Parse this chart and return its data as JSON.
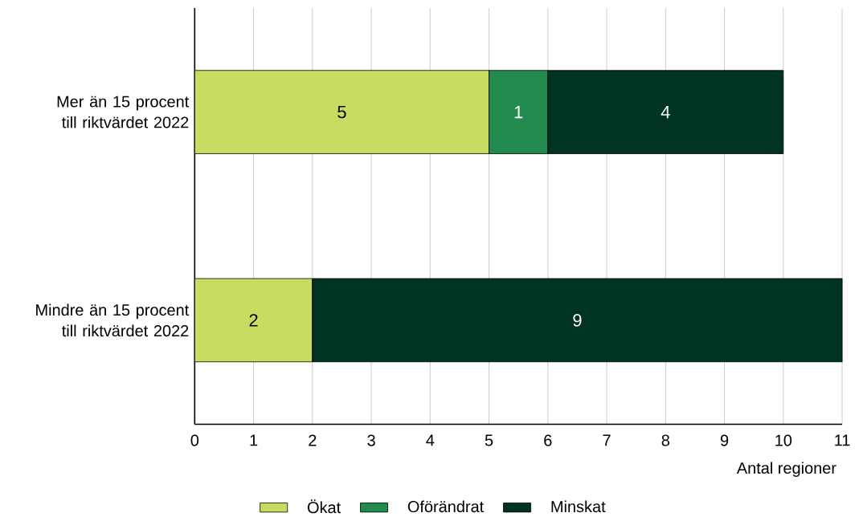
{
  "chart_data": {
    "type": "bar",
    "orientation": "horizontal",
    "stacked": true,
    "categories": [
      "Mer än 15 procent till riktvärdet 2022",
      "Mindre än 15 procent till riktvärdet 2022"
    ],
    "series": [
      {
        "name": "Ökat",
        "color": "#c9dc62",
        "values": [
          5,
          2
        ]
      },
      {
        "name": "Oförändrat",
        "color": "#238a4e",
        "values": [
          1,
          null
        ]
      },
      {
        "name": "Minskat",
        "color": "#003324",
        "values": [
          4,
          9
        ]
      }
    ],
    "xlabel": "Antal regioner",
    "xlim": [
      0,
      11
    ],
    "xticks": [
      0,
      1,
      2,
      3,
      4,
      5,
      6,
      7,
      8,
      9,
      10,
      11
    ],
    "grid": "x",
    "legend": "bottom",
    "data_labels": true
  }
}
